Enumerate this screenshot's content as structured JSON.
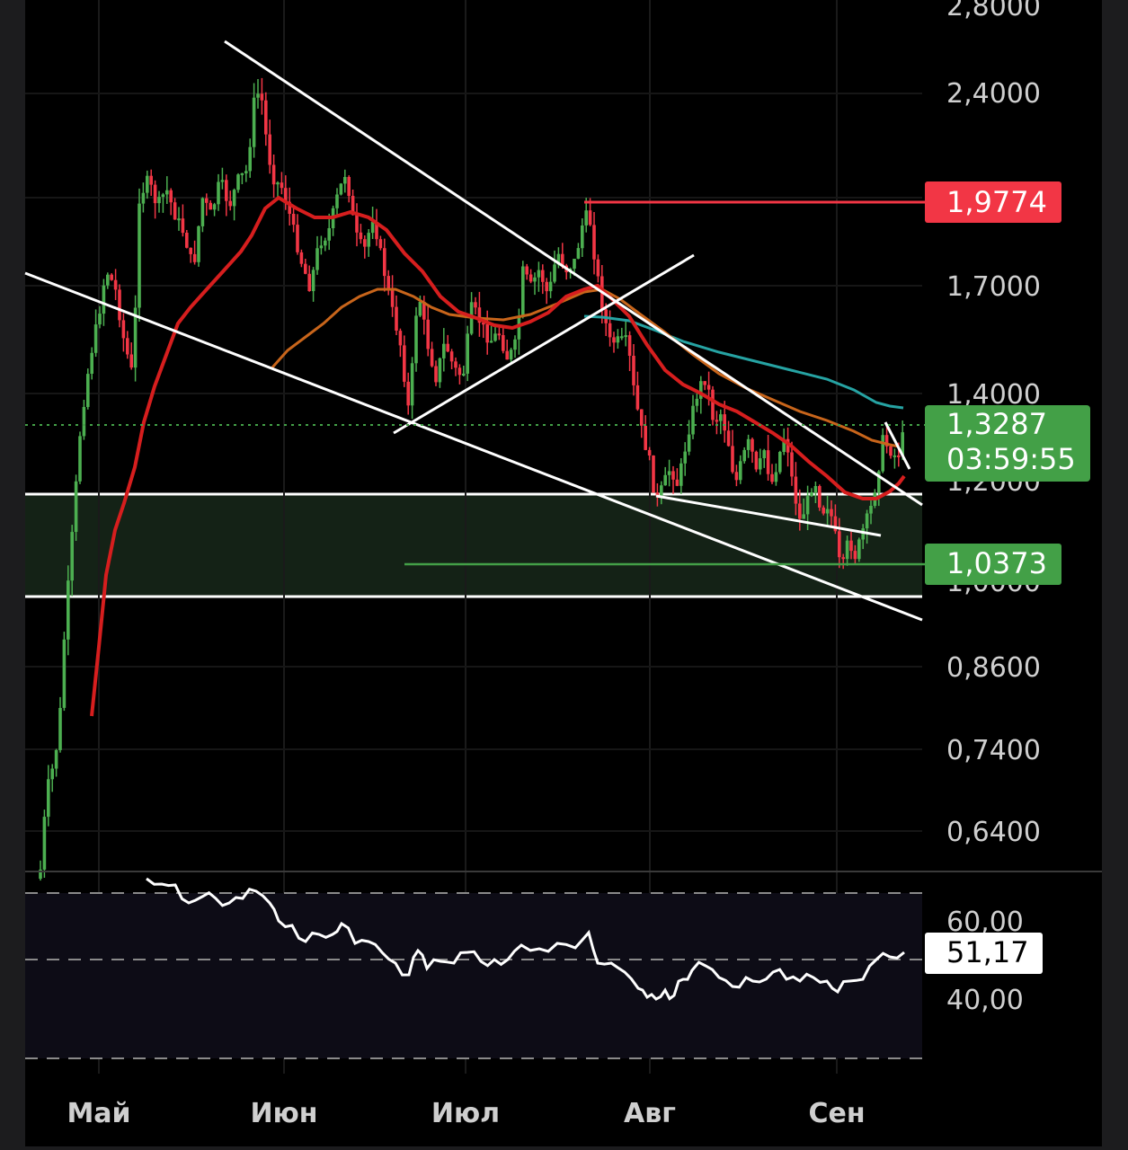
{
  "chart_data": {
    "type": "candlestick",
    "x_months": [
      "Май",
      "Июн",
      "Июл",
      "Авг",
      "Сен"
    ],
    "price_axis": {
      "ticks": [
        "2,8000",
        "2,4000",
        "1,7000",
        "1,4000",
        "1,2000",
        "1,0000",
        "0,8600",
        "0,7400",
        "0,6400"
      ],
      "scale": "log"
    },
    "current_price": {
      "value": "1,3287",
      "countdown": "03:59:55"
    },
    "levels": {
      "resistance": {
        "value": "1,9774"
      },
      "support": {
        "value": "1,0373"
      },
      "zone": {
        "top": 1.19,
        "bottom": 0.975
      }
    },
    "rsi": {
      "ticks": [
        "60,00",
        "40,00"
      ],
      "value": "51,17"
    },
    "colors": {
      "bull": "#4caf50",
      "bear": "#f23645",
      "ma_fast": "#d61e1e",
      "ma_mid": "#c8651b",
      "ma_slow": "#26a3a3",
      "badge_red": "#f23645",
      "badge_green": "#43a047",
      "zone_fill": "#142216"
    }
  }
}
